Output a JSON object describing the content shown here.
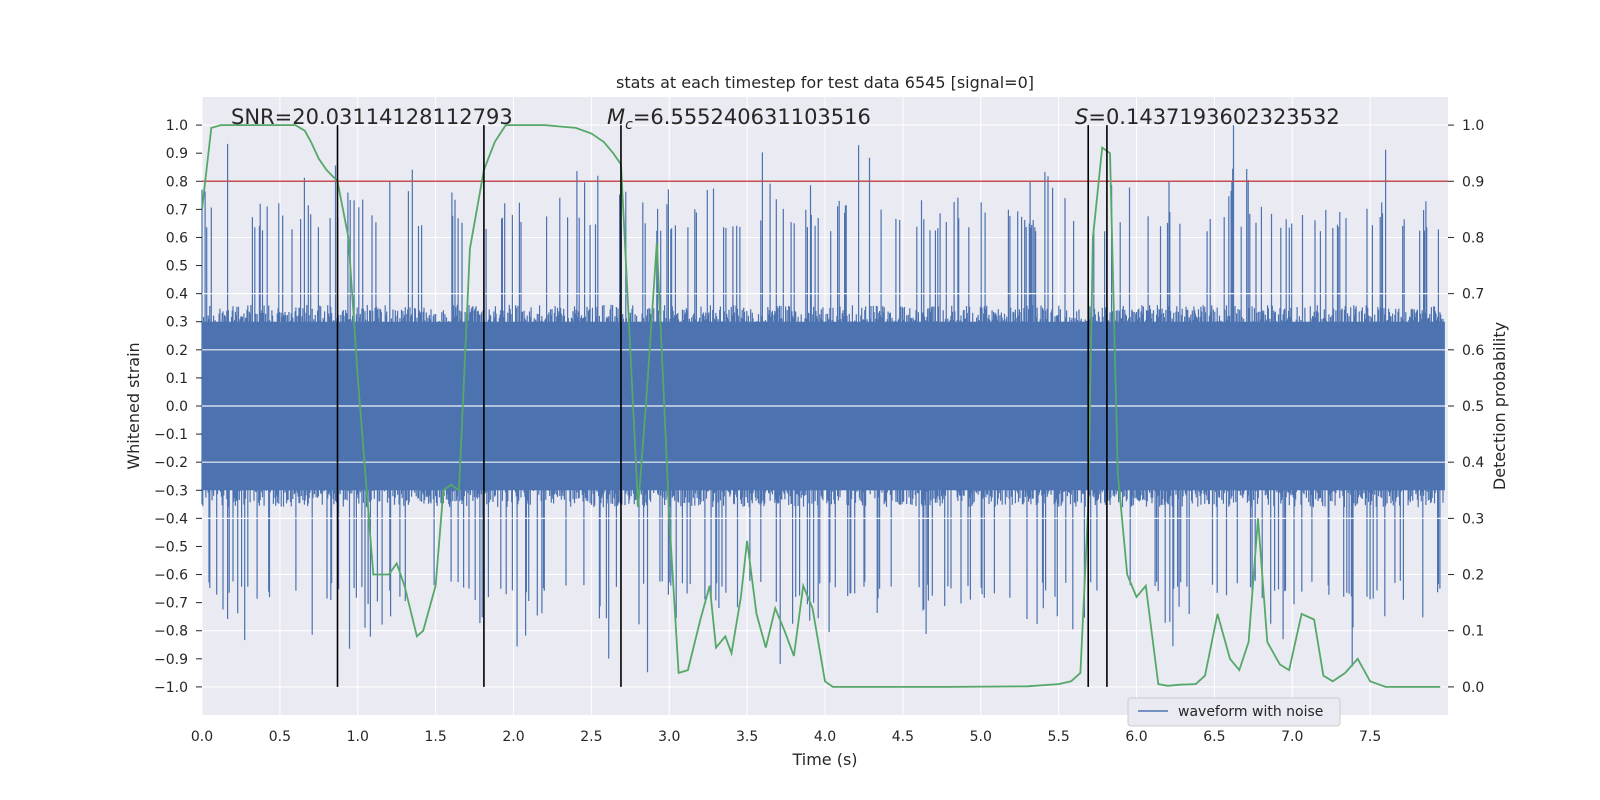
{
  "chart_data": {
    "type": "line",
    "title": "stats at each timestep for test data 6545 [signal=0]",
    "xlabel": "Time (s)",
    "ylabel": "Whitened strain",
    "y2label": "Detection probability",
    "xlim": [
      0.0,
      8.0
    ],
    "ylim": [
      -1.1,
      1.1
    ],
    "y2lim": [
      -0.05,
      1.05
    ],
    "xticks": [
      "0.0",
      "0.5",
      "1.0",
      "1.5",
      "2.0",
      "2.5",
      "3.0",
      "3.5",
      "4.0",
      "4.5",
      "5.0",
      "5.5",
      "6.0",
      "6.5",
      "7.0",
      "7.5"
    ],
    "yticks": [
      "1.0",
      "0.9",
      "0.8",
      "0.7",
      "0.6",
      "0.5",
      "0.4",
      "0.3",
      "0.2",
      "0.1",
      "0.0",
      "-0.1",
      "-0.2",
      "-0.3",
      "-0.4",
      "-0.5",
      "-0.6",
      "-0.7",
      "-0.8",
      "-0.9",
      "-1.0"
    ],
    "y2ticks": [
      "1.0",
      "0.9",
      "0.8",
      "0.7",
      "0.6",
      "0.5",
      "0.4",
      "0.3",
      "0.2",
      "0.1",
      "0.0"
    ],
    "threshold": {
      "value": 0.9,
      "axis": "y2",
      "color": "#c44e52"
    },
    "vlines": [
      0.87,
      1.81,
      2.69,
      5.69,
      5.81
    ],
    "vline_range": [
      -1.0,
      1.0
    ],
    "annotations": {
      "snr": "SNR=20.03114128112793",
      "mc_symbol": "M",
      "mc_sub": "c",
      "mc_value": "=6.555240631103516",
      "s_symbol": "S",
      "s_value": "=0.1437193602323532"
    },
    "annotation_x": [
      0.18,
      2.6,
      5.6
    ],
    "legend": {
      "label": "waveform with noise",
      "position": "lower-right"
    },
    "series": [
      {
        "name": "waveform with noise",
        "axis": "y",
        "color": "#4c72b0",
        "kind": "noise",
        "envelope": {
          "upper": 0.4,
          "lower": -0.4,
          "peak_max": 1.0,
          "peak_min": -1.0
        }
      },
      {
        "name": "Detection probability",
        "axis": "y2",
        "color": "#55a868",
        "x": [
          0.0,
          0.06,
          0.12,
          0.2,
          0.3,
          0.4,
          0.5,
          0.6,
          0.66,
          0.7,
          0.75,
          0.8,
          0.87,
          0.94,
          1.0,
          1.1,
          1.2,
          1.25,
          1.3,
          1.38,
          1.42,
          1.5,
          1.55,
          1.6,
          1.65,
          1.72,
          1.81,
          1.88,
          1.95,
          2.05,
          2.2,
          2.4,
          2.5,
          2.58,
          2.64,
          2.69,
          2.75,
          2.8,
          2.85,
          2.92,
          2.96,
          3.0,
          3.06,
          3.12,
          3.2,
          3.26,
          3.3,
          3.36,
          3.4,
          3.46,
          3.5,
          3.56,
          3.62,
          3.68,
          3.74,
          3.8,
          3.86,
          3.92,
          4.0,
          4.05,
          4.3,
          4.8,
          5.3,
          5.5,
          5.58,
          5.64,
          5.69,
          5.72,
          5.78,
          5.83,
          5.88,
          5.94,
          6.0,
          6.06,
          6.14,
          6.2,
          6.28,
          6.38,
          6.44,
          6.52,
          6.6,
          6.66,
          6.72,
          6.78,
          6.84,
          6.92,
          6.98,
          7.06,
          7.14,
          7.2,
          7.26,
          7.34,
          7.42,
          7.5,
          7.6,
          7.8,
          7.95
        ],
        "y": [
          0.85,
          0.995,
          1.0,
          1.0,
          1.0,
          1.0,
          1.0,
          1.0,
          0.99,
          0.97,
          0.94,
          0.92,
          0.9,
          0.8,
          0.55,
          0.2,
          0.2,
          0.22,
          0.18,
          0.09,
          0.1,
          0.18,
          0.35,
          0.36,
          0.35,
          0.78,
          0.92,
          0.97,
          1.0,
          1.0,
          1.0,
          0.995,
          0.985,
          0.97,
          0.95,
          0.93,
          0.6,
          0.32,
          0.5,
          0.79,
          0.55,
          0.3,
          0.025,
          0.03,
          0.12,
          0.18,
          0.07,
          0.09,
          0.06,
          0.16,
          0.26,
          0.13,
          0.07,
          0.14,
          0.1,
          0.055,
          0.18,
          0.14,
          0.01,
          0.0,
          0.0,
          0.0,
          0.001,
          0.005,
          0.01,
          0.025,
          0.32,
          0.8,
          0.96,
          0.95,
          0.38,
          0.2,
          0.16,
          0.18,
          0.005,
          0.002,
          0.004,
          0.005,
          0.02,
          0.13,
          0.05,
          0.03,
          0.08,
          0.3,
          0.08,
          0.04,
          0.03,
          0.13,
          0.12,
          0.02,
          0.01,
          0.025,
          0.05,
          0.01,
          0.0,
          0.0,
          0.0
        ]
      }
    ]
  }
}
